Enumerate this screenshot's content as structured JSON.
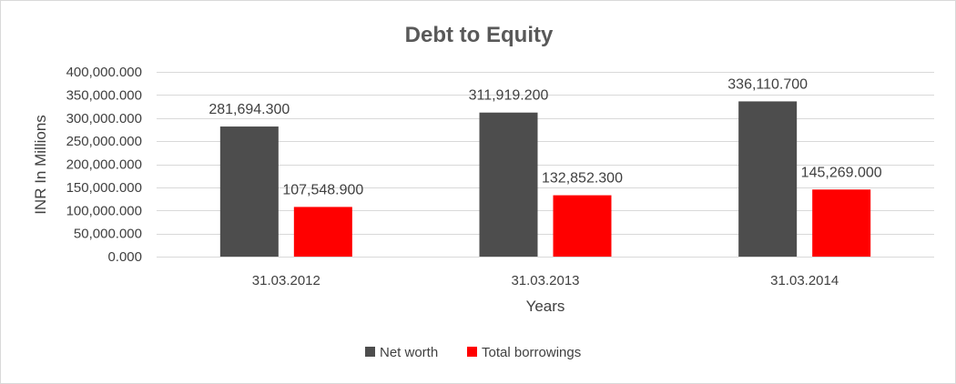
{
  "chart_data": {
    "type": "bar",
    "title": "Debt to Equity",
    "xlabel": "Years",
    "ylabel": "INR In Millions",
    "categories": [
      "31.03.2012",
      "31.03.2013",
      "31.03.2014"
    ],
    "series": [
      {
        "name": "Net worth",
        "color": "#4d4d4d",
        "values": [
          281694.3,
          311919.2,
          336110.7
        ],
        "labels": [
          "281,694.300",
          "311,919.200",
          "336,110.700"
        ]
      },
      {
        "name": "Total borrowings",
        "color": "#ff0000",
        "values": [
          107548.9,
          132852.3,
          145269.0
        ],
        "labels": [
          "107,548.900",
          "132,852.300",
          "145,269.000"
        ]
      }
    ],
    "ylim": [
      0,
      400000
    ],
    "yticks": [
      0,
      50000,
      100000,
      150000,
      200000,
      250000,
      300000,
      350000,
      400000
    ],
    "ytick_labels": [
      "0.000",
      "50,000.000",
      "100,000.000",
      "150,000.000",
      "200,000.000",
      "250,000.000",
      "300,000.000",
      "350,000.000",
      "400,000.000"
    ],
    "grid": true,
    "legend": "bottom"
  }
}
